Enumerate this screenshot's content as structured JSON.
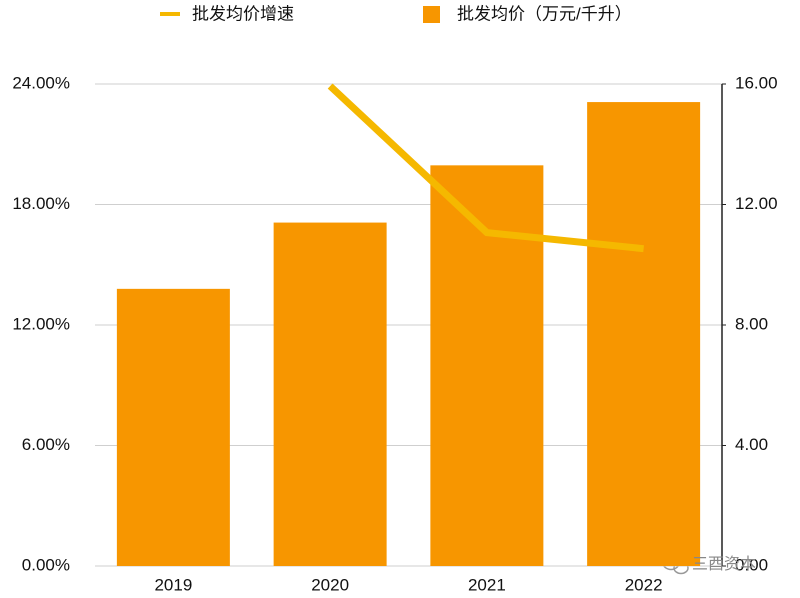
{
  "chart_data": {
    "type": "combo",
    "categories": [
      "2019",
      "2020",
      "2021",
      "2022"
    ],
    "series": [
      {
        "name": "批发均价增速",
        "type": "line",
        "axis": "y",
        "color": "#f5b800",
        "values": [
          null,
          23.9,
          16.6,
          15.8
        ]
      },
      {
        "name": "批发均价（万元/千升）",
        "type": "bar",
        "axis": "y2",
        "color": "#f79600",
        "values": [
          9.2,
          11.4,
          13.3,
          15.4
        ]
      }
    ],
    "ylim": [
      0,
      24
    ],
    "yticks": [
      {
        "value": 0,
        "label": "0.00%"
      },
      {
        "value": 6,
        "label": "6.00%"
      },
      {
        "value": 12,
        "label": "12.00%"
      },
      {
        "value": 18,
        "label": "18.00%"
      },
      {
        "value": 24,
        "label": "24.00%"
      }
    ],
    "y2lim": [
      0,
      16
    ],
    "y2ticks": [
      {
        "value": 0,
        "label": "0.00"
      },
      {
        "value": 4,
        "label": "4.00"
      },
      {
        "value": 8,
        "label": "8.00"
      },
      {
        "value": 12,
        "label": "12.00"
      },
      {
        "value": 16,
        "label": "16.00"
      }
    ],
    "grid": true,
    "legend": "top",
    "watermark": "三酉资本"
  }
}
